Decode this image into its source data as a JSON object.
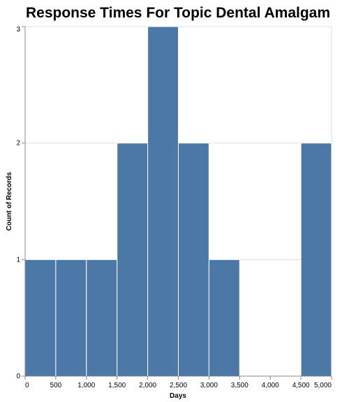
{
  "chart_data": {
    "type": "bar",
    "title": "Response Times For Topic Dental Amalgam",
    "xlabel": "Days",
    "ylabel": "Count of Records",
    "xlim": [
      0,
      5000
    ],
    "ylim": [
      0,
      3
    ],
    "x_ticks": [
      0,
      500,
      1000,
      1500,
      2000,
      2500,
      3000,
      3500,
      4000,
      4500,
      5000
    ],
    "x_tick_labels": [
      "0",
      "500",
      "1,000",
      "1,500",
      "2,000",
      "2,500",
      "3,000",
      "3,500",
      "4,000",
      "4,500",
      "5,000"
    ],
    "y_ticks": [
      0,
      1,
      2,
      3
    ],
    "y_tick_labels": [
      "0",
      "1",
      "2",
      "3"
    ],
    "grid": true,
    "bar_color": "#4c78a8",
    "bins": [
      {
        "start": 0,
        "end": 500,
        "count": 1
      },
      {
        "start": 500,
        "end": 1000,
        "count": 1
      },
      {
        "start": 1000,
        "end": 1500,
        "count": 1
      },
      {
        "start": 1500,
        "end": 2000,
        "count": 2
      },
      {
        "start": 2000,
        "end": 2500,
        "count": 3
      },
      {
        "start": 2500,
        "end": 3000,
        "count": 2
      },
      {
        "start": 3000,
        "end": 3500,
        "count": 1
      },
      {
        "start": 3500,
        "end": 4000,
        "count": 0
      },
      {
        "start": 4000,
        "end": 4500,
        "count": 0
      },
      {
        "start": 4500,
        "end": 5000,
        "count": 2
      }
    ]
  }
}
